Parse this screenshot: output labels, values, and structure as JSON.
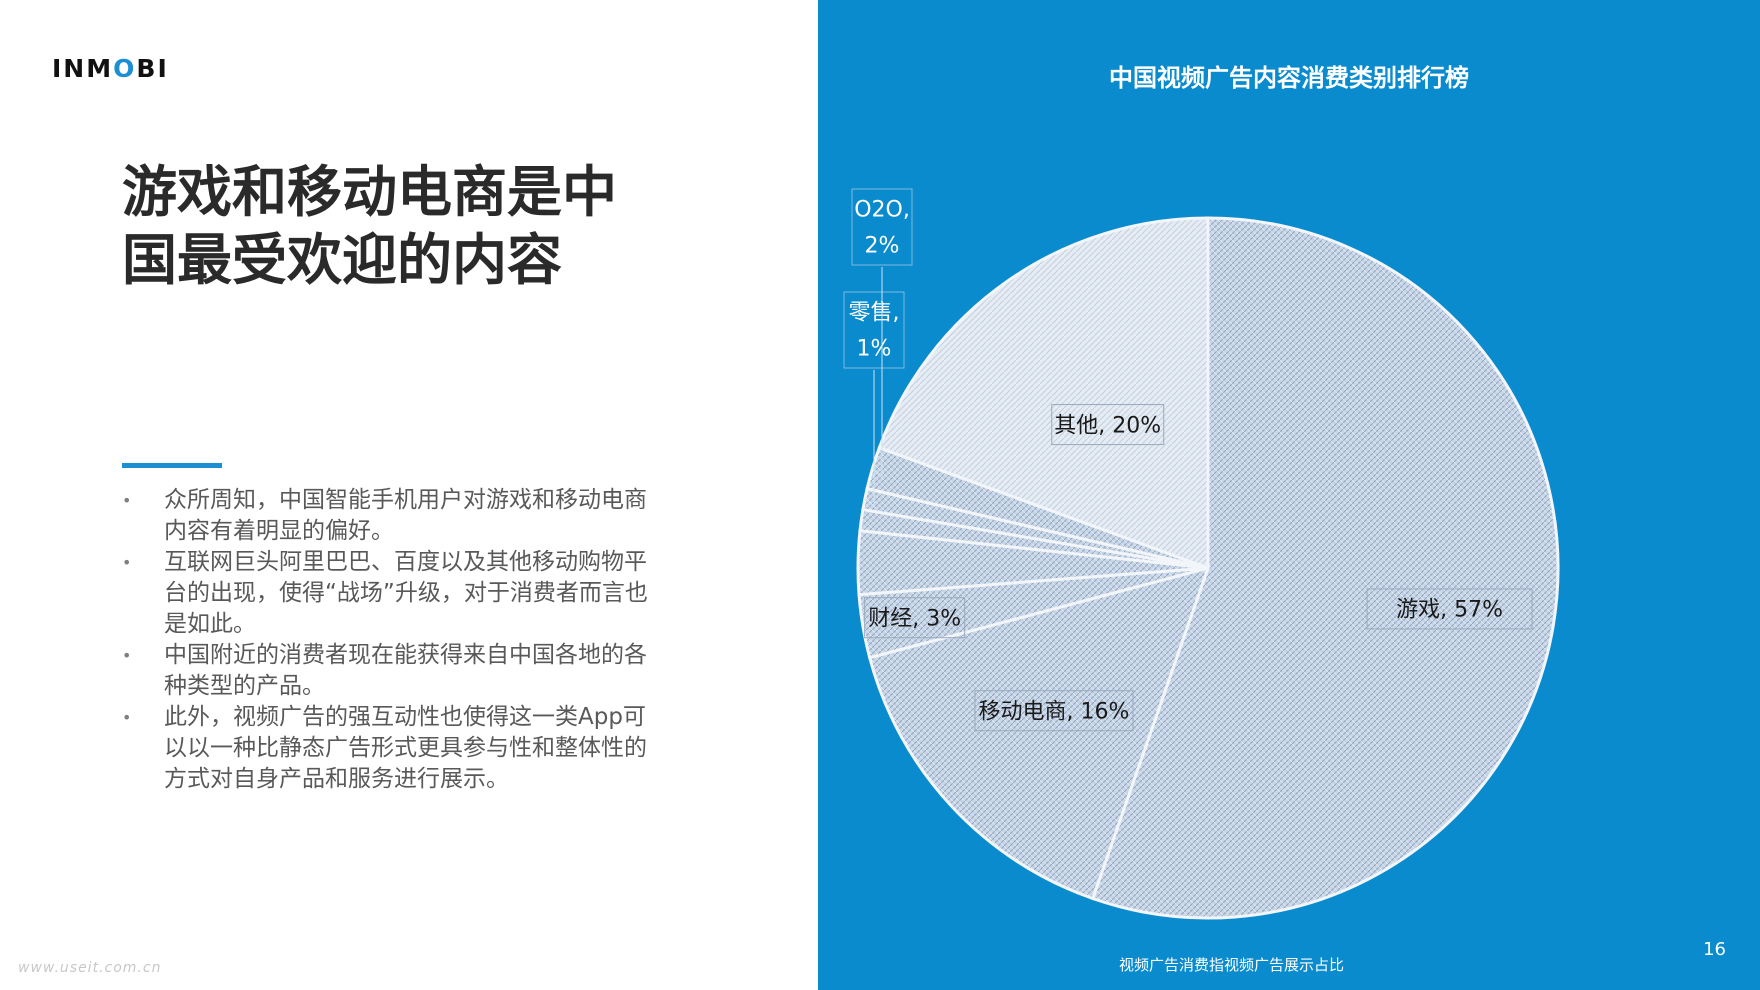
{
  "brand": {
    "logo_text_a": "IN",
    "logo_text_b": "M",
    "logo_text_c": "O",
    "logo_text_d": "BI",
    "accent_color": "#1b8fd1"
  },
  "slide": {
    "headline_line1": "游戏和移动电商是中",
    "headline_line2": "国最受欢迎的内容",
    "bullets": [
      "众所周知，中国智能手机用户对游戏和移动电商内容有着明显的偏好。",
      "互联网巨头阿里巴巴、百度以及其他移动购物平台的出现，使得“战场”升级，对于消费者而言也是如此。",
      "中国附近的消费者现在能获得来自中国各地的各种类型的产品。",
      "此外，视频广告的强互动性也使得这一类App可以以一种比静态广告形式更具参与性和整体性的方式对自身产品和服务进行展示。"
    ],
    "bullet_symbol": "•",
    "watermark": "www.useit.com.cn",
    "page_number": "16",
    "panel_color": "#0a8bcd"
  },
  "chart_data": {
    "type": "pie",
    "title": "中国视频广告内容消费类别排行榜",
    "footnote": "视频广告消费指视频广告展示占比",
    "slices": [
      {
        "name": "游戏",
        "value": 57,
        "label": "游戏, 57%"
      },
      {
        "name": "移动电商",
        "value": 16,
        "label": "移动电商, 16%"
      },
      {
        "name": "财经",
        "value": 3,
        "label": "财经, 3%"
      },
      {
        "name": "unlabeled-a",
        "value": 3,
        "label": ""
      },
      {
        "name": "unlabeled-b",
        "value": 1,
        "label": ""
      },
      {
        "name": "零售",
        "value": 1,
        "label": "零售, 1%"
      },
      {
        "name": "O2O",
        "value": 2,
        "label": "O2O, 2%"
      },
      {
        "name": "其他",
        "value": 20,
        "label": "其他, 20%"
      }
    ],
    "start": "12 o'clock",
    "direction": "clockwise",
    "legend": "none",
    "label_style": "boxed data labels"
  }
}
